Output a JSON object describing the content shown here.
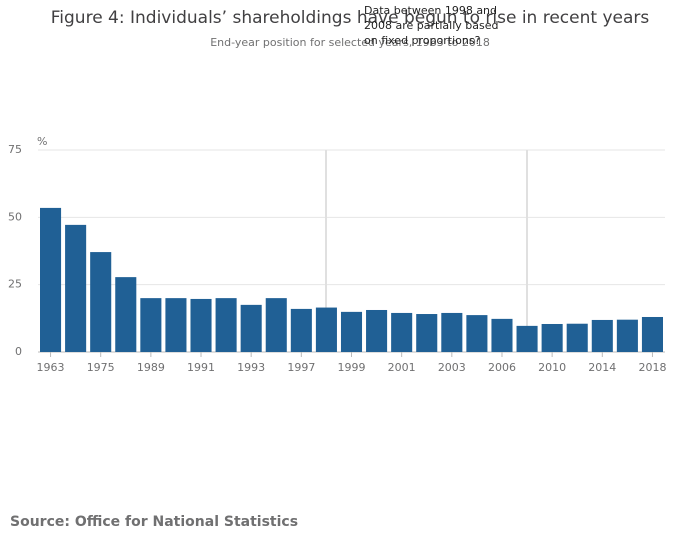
{
  "chart_data": {
    "type": "bar",
    "title": "Figure 4: Individuals’ shareholdings have begun to rise in recent years",
    "subtitle": "End-year position for selected years, 1963 to 2018",
    "y_unit": "%",
    "annotation": [
      "Data between 1998 and",
      "2008 are partially based",
      "on fixed proportions?"
    ],
    "source": "Source: Office for National Statistics",
    "categories": [
      "1963",
      null,
      "1975",
      null,
      "1989",
      null,
      "1991",
      null,
      "1993",
      null,
      "1997",
      null,
      "1999",
      null,
      "2001",
      null,
      "2003",
      null,
      "2006",
      null,
      "2010",
      null,
      "2014",
      null,
      "2018"
    ],
    "values": [
      53.5,
      47.2,
      37.1,
      27.8,
      20,
      20,
      19.7,
      20,
      17.5,
      20,
      16,
      16.5,
      14.9,
      15.6,
      14.5,
      14.1,
      14.5,
      13.7,
      12.3,
      9.7,
      10.4,
      10.5,
      11.9,
      12,
      13
    ],
    "color": "#206095",
    "ylim": [
      0,
      75
    ],
    "yticks": [
      0,
      25,
      50,
      75
    ],
    "grid": true
  }
}
